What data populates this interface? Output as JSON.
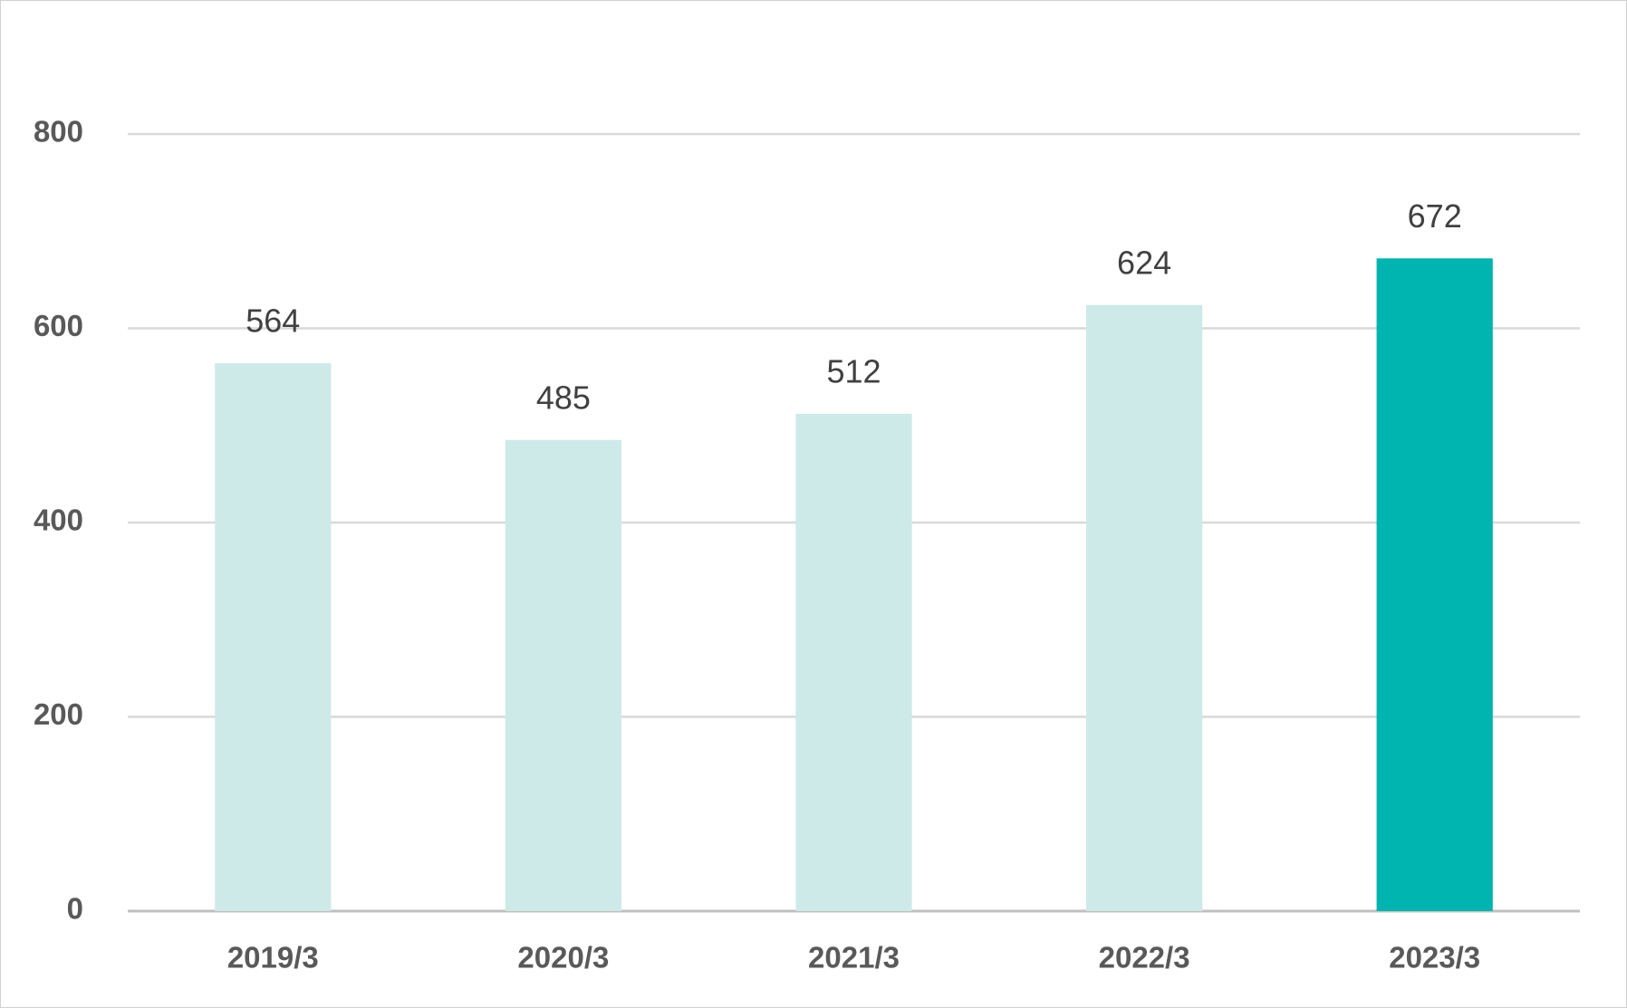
{
  "chart_data": {
    "type": "bar",
    "categories": [
      "2019/3",
      "2020/3",
      "2021/3",
      "2022/3",
      "2023/3"
    ],
    "values": [
      564,
      485,
      512,
      624,
      672
    ],
    "colors": [
      "#cdeae8",
      "#cdeae8",
      "#cdeae8",
      "#cdeae8",
      "#00b5b0"
    ],
    "ylim": [
      0,
      800
    ],
    "yticks": [
      0,
      200,
      400,
      600,
      800
    ],
    "grid": true
  }
}
